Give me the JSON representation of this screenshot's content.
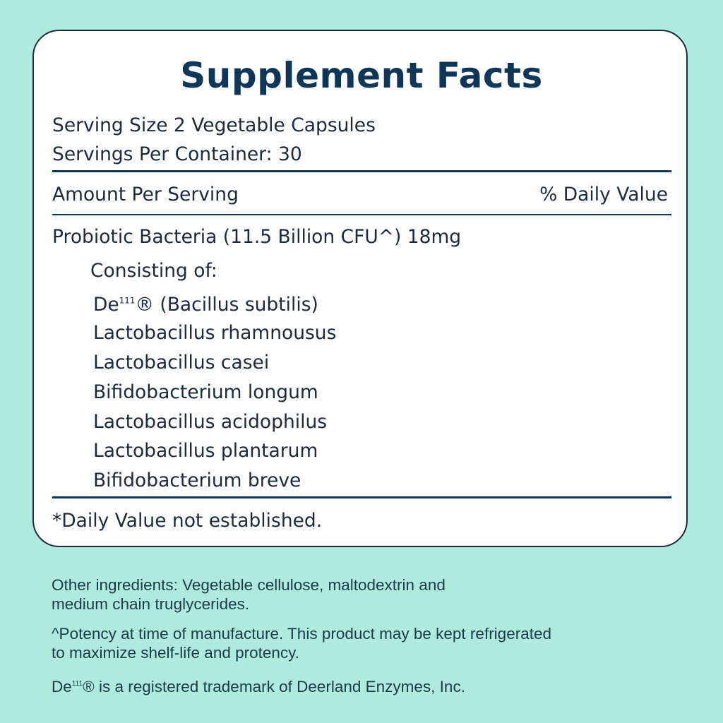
{
  "panel": {
    "title": "Supplement Facts",
    "serving_size": "Serving Size 2 Vegetable Capsules",
    "servings_per_container": "Servings Per Container: 30",
    "amount_header": "Amount Per Serving",
    "daily_value_header": "% Daily Value",
    "main_ingredient": "Probiotic Bacteria (11.5 Billion CFU^) 18mg",
    "consisting_label": "Consisting of:",
    "strains": [
      {
        "prefix": "De",
        "sup": "111",
        "suffix": "® (Bacillus subtilis)"
      },
      "Lactobacillus rhamnousus",
      "Lactobacillus casei",
      "Bifidobacterium longum",
      "Lactobacillus acidophilus",
      "Lactobacillus plantarum",
      "Bifidobacterium breve"
    ],
    "footnote": "*Daily Value not established."
  },
  "footer": {
    "other_ingredients_1": "Other ingredients: Vegetable cellulose, maltodextrin and",
    "other_ingredients_2": "medium chain truglycerides.",
    "potency_1": "^Potency at time of manufacture. This product may be kept refrigerated",
    "potency_2": "to maximize shelf-life and protency.",
    "trademark_prefix": "De",
    "trademark_sup": "111",
    "trademark_suffix": "® is a registered trademark of Deerland Enzymes, Inc."
  },
  "colors": {
    "background": "#aeeade",
    "title": "#0f3557",
    "text": "#1d2b3c"
  }
}
